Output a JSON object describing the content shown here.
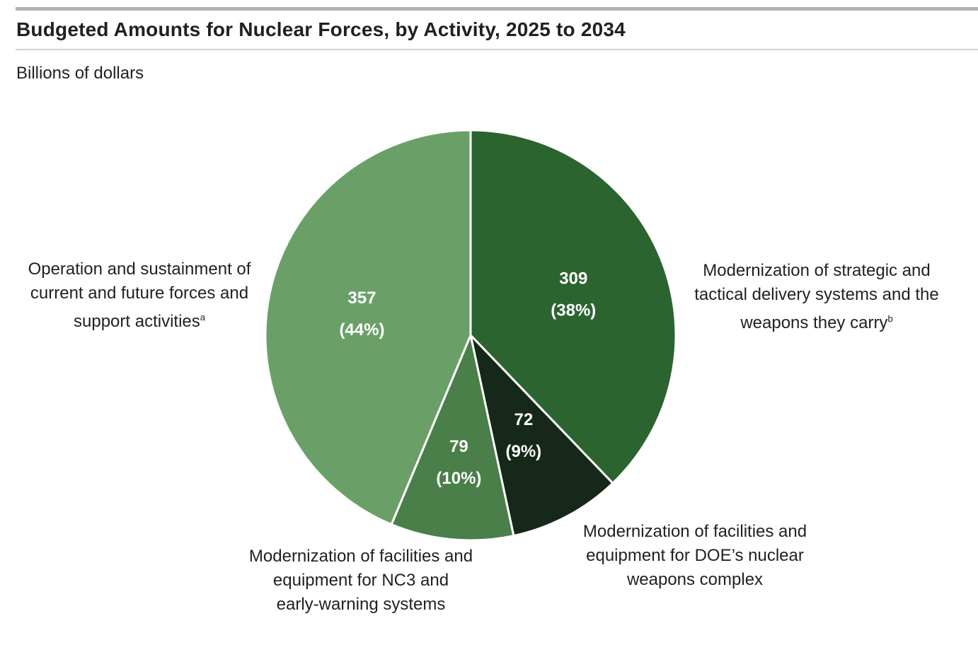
{
  "header": {
    "title": "Budgeted Amounts for Nuclear Forces, by Activity, 2025 to 2034",
    "unit_label": "Billions of dollars"
  },
  "chart_data": {
    "type": "pie",
    "title": "Budgeted Amounts for Nuclear Forces, by Activity, 2025 to 2034",
    "unit": "Billions of dollars",
    "slices": [
      {
        "value": 309,
        "value_label": "309",
        "percent_label": "(38%)",
        "label": "Modernization of strategic and\ntactical delivery systems and the\nweapons they carry",
        "note": "b",
        "color": "#2c6430"
      },
      {
        "value": 72,
        "value_label": "72",
        "percent_label": "(9%)",
        "label": "Modernization of facilities and\nequipment for DOE’s nuclear\nweapons complex",
        "note": "",
        "color": "#15281a"
      },
      {
        "value": 79,
        "value_label": "79",
        "percent_label": "(10%)",
        "label": "Modernization of facilities and\nequipment for NC3 and\nearly-warning systems",
        "note": "",
        "color": "#4a7f49"
      },
      {
        "value": 357,
        "value_label": "357",
        "percent_label": "(44%)",
        "label": "Operation and sustainment of\ncurrent and future forces and\nsupport activities",
        "note": "a",
        "color": "#6aa068"
      }
    ]
  }
}
